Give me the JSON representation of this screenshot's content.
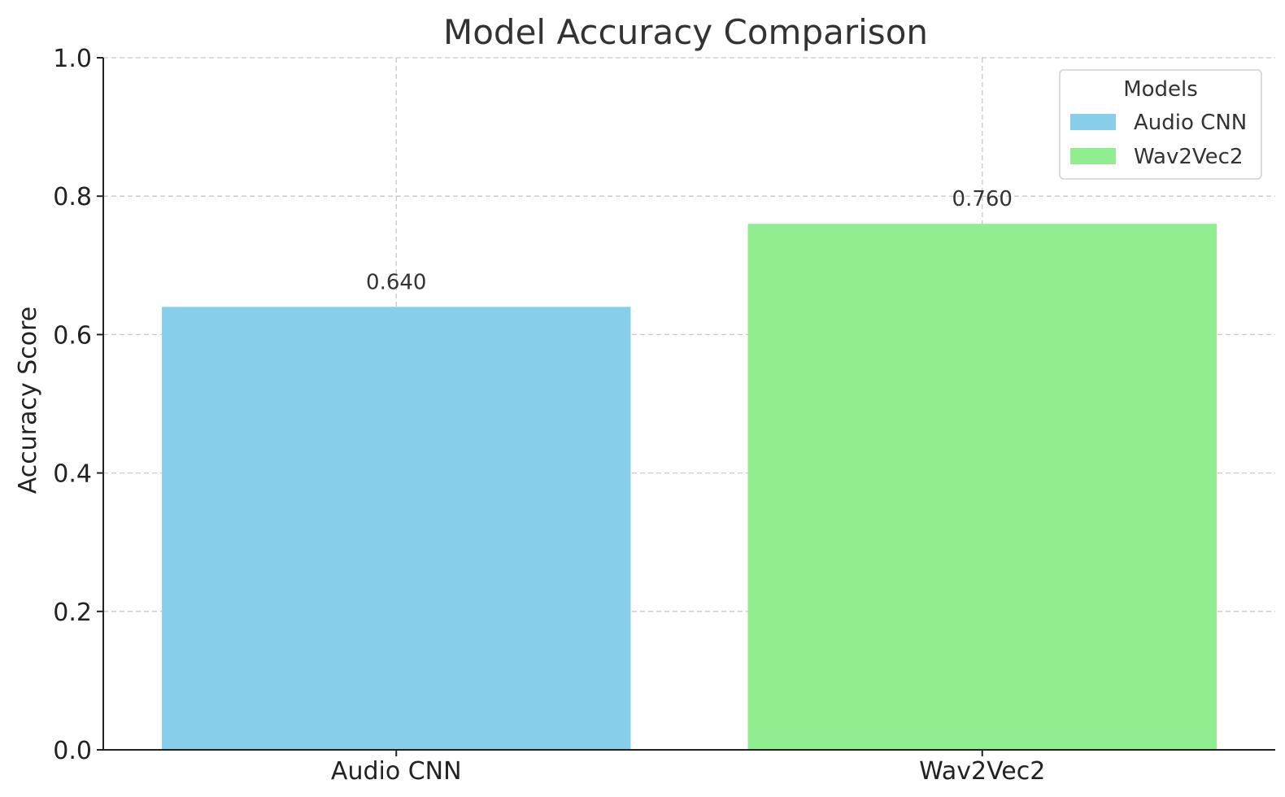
{
  "chart_data": {
    "type": "bar",
    "title": "Model Accuracy Comparison",
    "xlabel": "",
    "ylabel": "Accuracy Score",
    "categories": [
      "Audio CNN",
      "Wav2Vec2"
    ],
    "values": [
      0.64,
      0.76
    ],
    "value_labels": [
      "0.640",
      "0.760"
    ],
    "colors": [
      "#87ceeb",
      "#90ee90"
    ],
    "ylim": [
      0,
      1.0
    ],
    "yticks": [
      0.0,
      0.2,
      0.4,
      0.6,
      0.8,
      1.0
    ],
    "ytick_labels": [
      "0.0",
      "0.2",
      "0.4",
      "0.6",
      "0.8",
      "1.0"
    ],
    "grid": true,
    "legend": {
      "title": "Models",
      "placement": "top-right",
      "entries": [
        "Audio CNN",
        "Wav2Vec2"
      ]
    }
  }
}
